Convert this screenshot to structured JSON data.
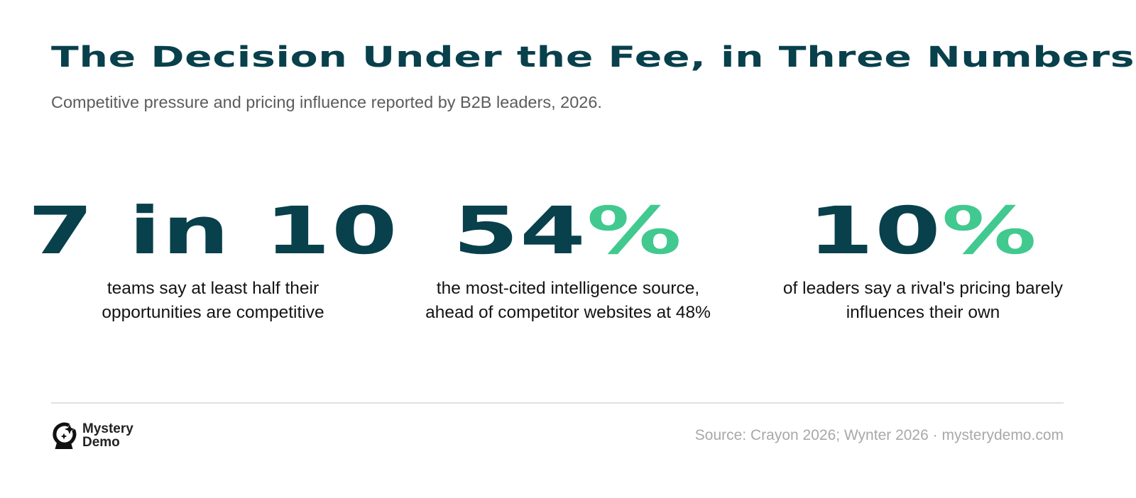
{
  "header": {
    "title": "The Decision Under the Fee, in Three Numbers",
    "subtitle": "Competitive pressure and pricing influence reported by B2B leaders, 2026."
  },
  "stats": [
    {
      "figure": "7 in 10",
      "suffix": "",
      "caption_line1": "teams say at least half their",
      "caption_line2": "opportunities are competitive"
    },
    {
      "figure": "54",
      "suffix": "%",
      "caption_line1": "the most-cited intelligence source,",
      "caption_line2": "ahead of competitor websites at 48%"
    },
    {
      "figure": "10",
      "suffix": "%",
      "caption_line1": "of leaders say a rival's pricing barely",
      "caption_line2": "influences their own"
    }
  ],
  "footer": {
    "brand_line1": "Mystery",
    "brand_line2": "Demo",
    "brand_icon": "crystal-ball-sparkle-icon",
    "source": "Source: Crayon 2026; Wynter 2026 · mysterydemo.com"
  },
  "colors": {
    "primary": "#08404c",
    "accent": "#41c98f",
    "muted": "#5b5b5b",
    "source_text": "#a8a8a8",
    "divider": "#e0e0e0"
  }
}
